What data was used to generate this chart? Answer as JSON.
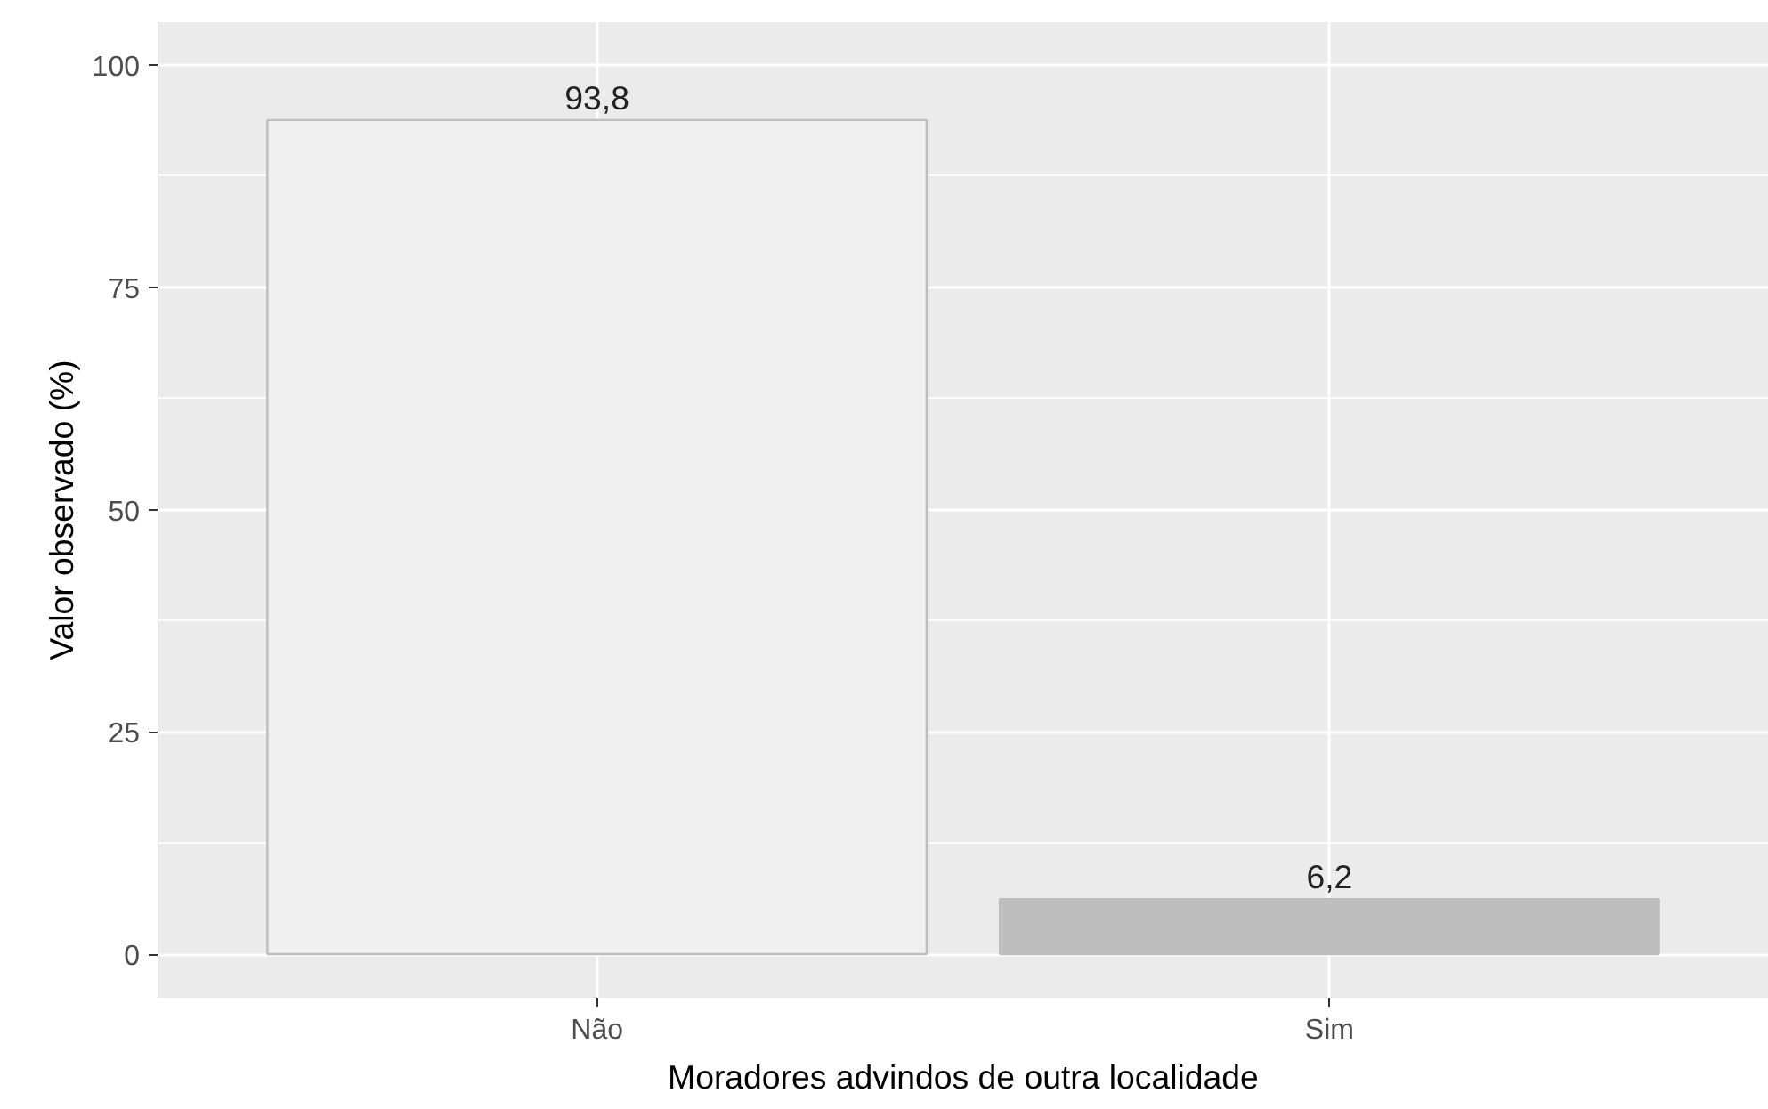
{
  "chart_data": {
    "type": "bar",
    "xlabel": "Moradores advindos de outra localidade",
    "ylabel": "Valor observado (%)",
    "categories": [
      "Não",
      "Sim"
    ],
    "values": [
      93.8,
      6.2
    ],
    "value_labels": [
      "93,8",
      "6,2"
    ],
    "colors": [
      "#f0f0f0",
      "#bebebe"
    ],
    "ylim": [
      -4.9,
      104.8
    ],
    "yticks": [
      0,
      25,
      50,
      75,
      100
    ],
    "grid": true
  }
}
